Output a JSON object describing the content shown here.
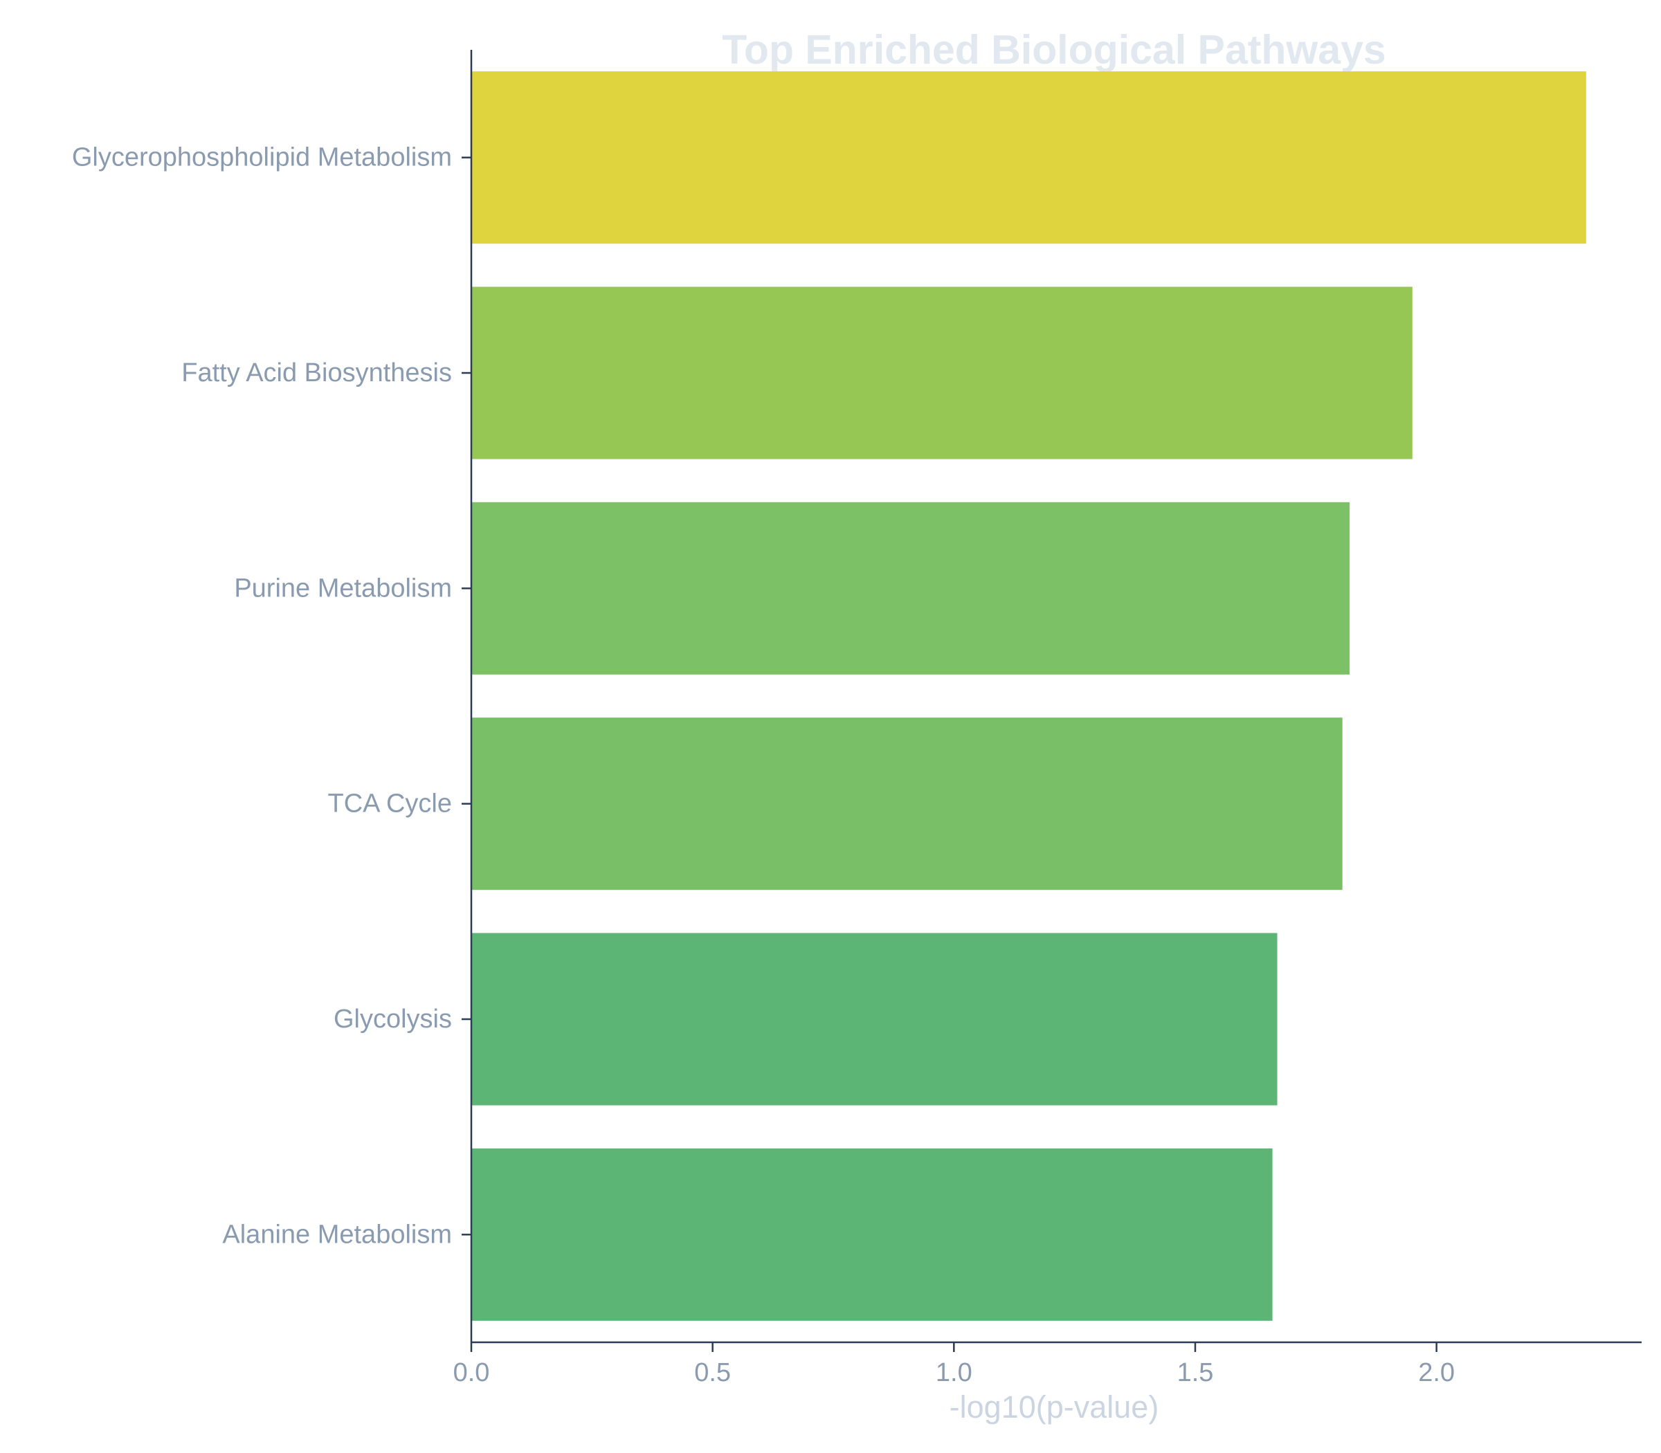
{
  "chart_data": {
    "type": "bar",
    "orientation": "horizontal",
    "title": "Top Enriched Biological Pathways",
    "xlabel": "-log10(p-value)",
    "ylabel": "",
    "categories": [
      "Glycerophospholipid Metabolism",
      "Fatty Acid Biosynthesis",
      "Purine Metabolism",
      "TCA Cycle",
      "Glycolysis",
      "Alanine Metabolism"
    ],
    "values": [
      2.31,
      1.95,
      1.82,
      1.805,
      1.67,
      1.66
    ],
    "bar_colors": [
      "#e0d43e",
      "#96c653",
      "#7dc167",
      "#79bf68",
      "#5cb574",
      "#5cb574"
    ],
    "xlim": [
      0,
      2.425
    ],
    "xticks": [
      0.0,
      0.5,
      1.0,
      1.5,
      2.0
    ],
    "xtick_labels": [
      "0.0",
      "0.5",
      "1.0",
      "1.5",
      "2.0"
    ],
    "grid": false,
    "legend": "none"
  },
  "colors": {
    "title": "#e2e8f0",
    "tick_label": "#8a9bb0",
    "axis_label": "#cbd5e1",
    "spine": "#2d3b55"
  }
}
